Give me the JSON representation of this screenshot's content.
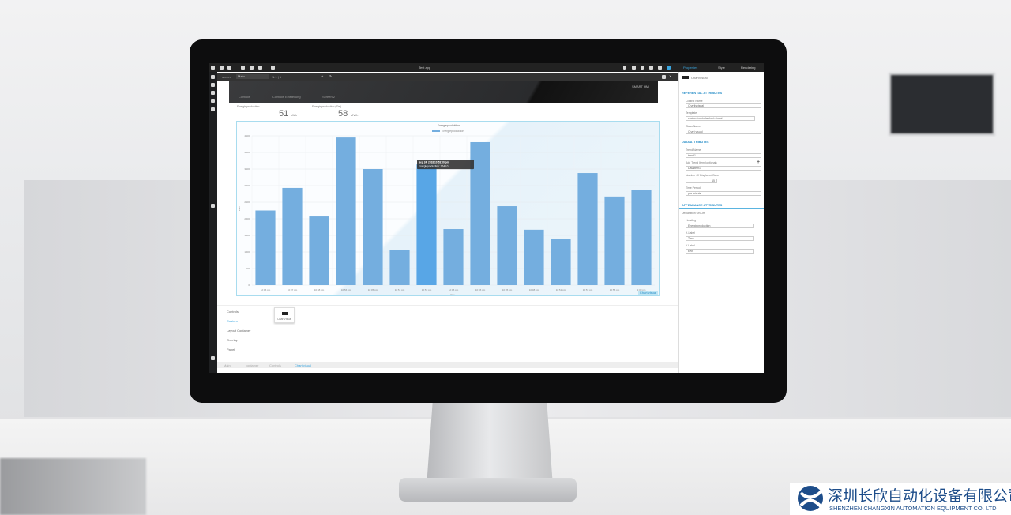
{
  "app": {
    "title": "Test app",
    "tabs": [
      "Properties",
      "Style",
      "Rendering"
    ]
  },
  "toolbar": {
    "screen_label": "screen",
    "screen_value": "Main",
    "zoom_value": "1:1 | 1"
  },
  "header": {
    "brand": "SMART HMI",
    "nav": [
      "Controls",
      "Controls Einstellung",
      "Screen 2"
    ]
  },
  "kpis": [
    {
      "label": "Energieproduktion",
      "value": "51",
      "unit": "kWh"
    },
    {
      "label": "Energieproduktion (Ziel)",
      "value": "58",
      "unit": "MWh"
    }
  ],
  "chart_data": {
    "type": "bar",
    "title": "Energieproduktion",
    "legend": "Energieproduktion",
    "legend_position": "top",
    "xlabel": "time",
    "ylabel": "kWh",
    "ylim": [
      0,
      4500
    ],
    "yticks": [
      0,
      500,
      1000,
      1500,
      2000,
      2500,
      3000,
      3500,
      4000,
      4500
    ],
    "grid": true,
    "categories": [
      "12:06 pm",
      "10:07 pm",
      "10:48 pm",
      "10:56 pm",
      "10:05 pm",
      "10:51 pm",
      "10:53 pm",
      "12:05 pm",
      "10:55 pm",
      "10:05 pm",
      "10:08 pm",
      "10:51 pm",
      "10:53 pm",
      "10:55 pm",
      "1:00 pm"
    ],
    "values": [
      2250,
      2930,
      2070,
      4450,
      3500,
      1070,
      3640,
      1690,
      4310,
      2380,
      1670,
      1400,
      3380,
      2670,
      2860
    ],
    "highlighted_index": 6,
    "color": "#74aedf",
    "highlight_color": "#58a6e6",
    "tooltip": {
      "title": "Sep 24, 2018 10:53:00 pm",
      "body": "Energieproduktion: 3640.0"
    },
    "badge": "Chart visual"
  },
  "catalog": {
    "categories": [
      "Controls",
      "Custom",
      "Layout Container",
      "Overlay",
      "Panel"
    ],
    "selected": "Custom",
    "tile": "ChartVisual"
  },
  "breadcrumb": [
    "Main",
    "container",
    "Controls",
    "Chart visual"
  ],
  "properties": {
    "component": "ChartVisual",
    "sections": {
      "reference": "REFERENTIAL ATTRIBUTES",
      "data": "DATA ATTRIBUTES",
      "appearance": "APPEARANCE ATTRIBUTES"
    },
    "control_name_label": "Control Name",
    "control_name": "Chartjsvisual",
    "template_label": "Template",
    "template": "custom/controls/chart-visual",
    "class_name_label": "Class Name",
    "class_name": "Chart visual",
    "trend_name_label": "Trend Name",
    "trend_name": "trend1",
    "add_trend_label": "Add Trend Item (optional)",
    "trend_item": "Dataitem1",
    "displayed_bars_label": "Number Of Displayed Bars",
    "displayed_bars": "15",
    "time_period_label": "Time Period",
    "time_period": "per minute",
    "declaration_label": "Declaration On/Off",
    "heading_label": "Heading",
    "heading": "Energieproduktion",
    "xlabel_label": "X-Label",
    "xlabel": "Time",
    "ylabel_label": "Y-Label",
    "ylabel": "kWh"
  },
  "watermark": {
    "cn": "深圳长欣自动化设备有限公司",
    "en": "SHENZHEN CHANGXIN AUTOMATION EQUIPMENT CO. LTD"
  }
}
